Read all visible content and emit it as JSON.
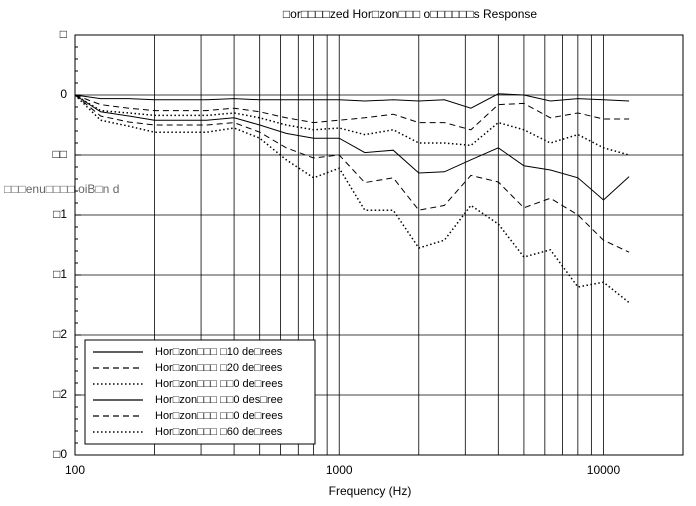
{
  "chart_data": {
    "type": "line",
    "title": "□or□□□□zed Hor□zon□□□ o□□□□□□s Response",
    "x_label": "Frequency (Hz)",
    "y_label": "□□□enu□□□□ oiB□n d",
    "log_x": true,
    "xlim": [
      100,
      20000
    ],
    "xticks": [
      100,
      1000,
      10000
    ],
    "minor_xticks": [
      200,
      300,
      400,
      500,
      600,
      700,
      800,
      900,
      2000,
      3000,
      4000,
      5000,
      6000,
      7000,
      8000,
      9000
    ],
    "ylim": [
      -30,
      5
    ],
    "yticks": [
      {
        "value": 5,
        "label": "□"
      },
      0,
      {
        "value": -5,
        "label": "□□"
      },
      {
        "value": -10,
        "label": "□1"
      },
      {
        "value": -15,
        "label": "□1"
      },
      {
        "value": -20,
        "label": "□2"
      },
      {
        "value": -25,
        "label": "□2"
      },
      {
        "value": -30,
        "label": "□0"
      }
    ],
    "grid": true,
    "legend": "lower left",
    "x": [
      100,
      125,
      160,
      200,
      250,
      315,
      400,
      500,
      630,
      800,
      1000,
      1250,
      1600,
      2000,
      2500,
      3150,
      4000,
      5000,
      6300,
      8000,
      10000,
      12500
    ],
    "series": [
      {
        "name": "Hor□zon□□□ □10 de□rees",
        "color": "#000000",
        "dash": "solid",
        "values": [
          0,
          -0.3,
          -0.3,
          -0.4,
          -0.4,
          -0.4,
          -0.3,
          -0.4,
          -0.4,
          -0.4,
          -0.4,
          -0.5,
          -0.4,
          -0.5,
          -0.4,
          -1.1,
          0.1,
          0,
          -0.5,
          -0.3,
          -0.4,
          -0.5
        ]
      },
      {
        "name": "Hor□zon□□□ □20 de□rees",
        "color": "#000000",
        "dash": "dashed",
        "values": [
          0,
          -0.8,
          -1.1,
          -1.3,
          -1.3,
          -1.3,
          -1.1,
          -1.4,
          -1.9,
          -2.3,
          -2.1,
          -1.9,
          -1.6,
          -2.3,
          -2.3,
          -2.9,
          -0.8,
          -0.7,
          -1.9,
          -1.5,
          -2,
          -2
        ]
      },
      {
        "name": "Hor□zon□□□ □□0 de□rees",
        "color": "#000000",
        "dash": "dotted",
        "values": [
          0,
          -1.3,
          -1.5,
          -1.7,
          -1.7,
          -1.7,
          -1.5,
          -1.9,
          -2.5,
          -2.9,
          -2.75,
          -3.3,
          -2.9,
          -4,
          -4,
          -4.2,
          -2.3,
          -2.9,
          -4,
          -3.3,
          -4.4,
          -5
        ]
      },
      {
        "name": "Hor□zon□□□ □□0 des□ree",
        "color": "#000000",
        "dash": "solid",
        "values": [
          0,
          -1.4,
          -1.75,
          -2.1,
          -2.1,
          -2.1,
          -1.9,
          -2.5,
          -3.2,
          -3.6,
          -3.6,
          -4.8,
          -4.6,
          -6.5,
          -6.4,
          -5.4,
          -4.4,
          -5.9,
          -6.25,
          -6.9,
          -8.75,
          -6.8
        ]
      },
      {
        "name": "Hor□zon□□□ □□0 de□rees",
        "color": "#000000",
        "dash": "dashed",
        "values": [
          0,
          -1.75,
          -2.25,
          -2.5,
          -2.5,
          -2.5,
          -2.3,
          -3.1,
          -4.4,
          -5.25,
          -5,
          -7.3,
          -6.9,
          -9.6,
          -9.2,
          -6.7,
          -7.25,
          -9.4,
          -8.6,
          -10,
          -12.1,
          -13.1
        ]
      },
      {
        "name": "Hor□zon□□□ □60 de□rees",
        "color": "#000000",
        "dash": "dotted",
        "values": [
          0,
          -2.1,
          -2.6,
          -3.1,
          -3.1,
          -3.1,
          -2.75,
          -3.6,
          -5.4,
          -6.9,
          -6.1,
          -9.6,
          -9.6,
          -12.75,
          -12.1,
          -9.2,
          -10.75,
          -13.5,
          -12.9,
          -16,
          -15.6,
          -17.3
        ]
      }
    ]
  }
}
